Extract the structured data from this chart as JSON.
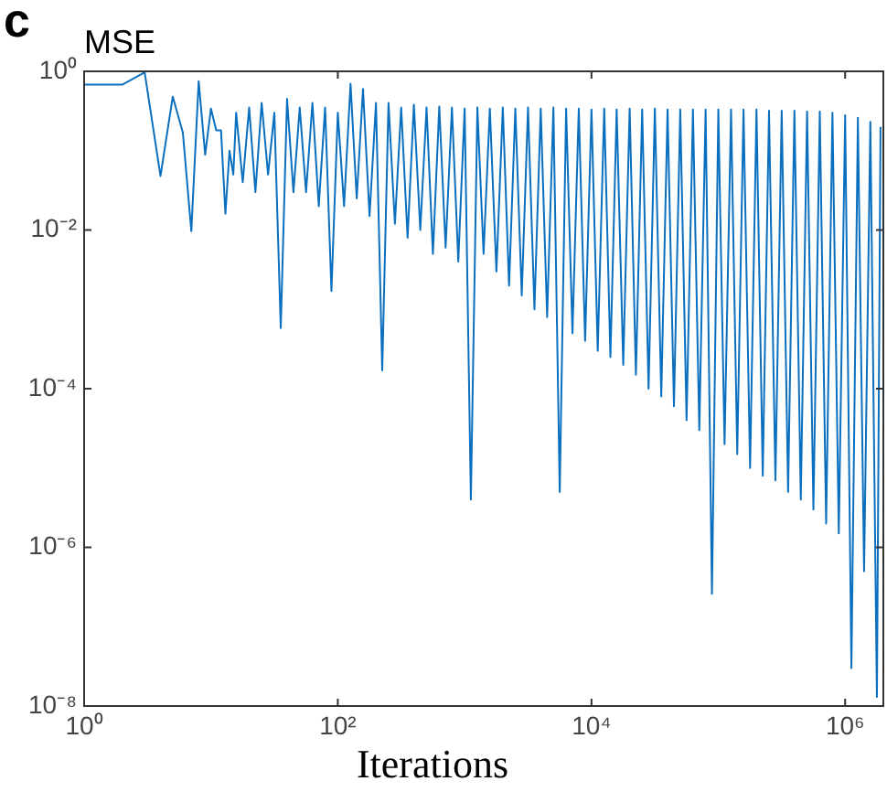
{
  "chart_data": {
    "type": "line",
    "title": "MSE",
    "xlabel": "Iterations",
    "annotations": [
      "c"
    ],
    "log": "xy",
    "grid": false,
    "legend": false,
    "marker": "none",
    "line_style": "solid",
    "color": "#0b6fbf",
    "xlim": [
      1,
      2000000
    ],
    "ylim": [
      1e-08,
      1
    ],
    "xticks": [
      {
        "value": 1,
        "label": "10⁰"
      },
      {
        "value": 100,
        "label": "10²"
      },
      {
        "value": 10000,
        "label": "10⁴"
      },
      {
        "value": 1000000,
        "label": "10⁶"
      }
    ],
    "yticks": [
      {
        "value": 1e-08,
        "label": "10⁻⁸"
      },
      {
        "value": 1e-06,
        "label": "10⁻⁶"
      },
      {
        "value": 0.0001,
        "label": "10⁻⁴"
      },
      {
        "value": 0.01,
        "label": "10⁻²"
      },
      {
        "value": 1,
        "label": "10⁰"
      }
    ],
    "x": [
      1,
      2,
      3,
      4,
      5,
      6,
      7,
      8,
      9,
      10,
      11,
      12,
      13,
      14,
      15,
      15.8,
      17.8,
      20,
      22.4,
      25.1,
      28.2,
      31.6,
      35.5,
      39.8,
      44.7,
      50.1,
      56.2,
      63.1,
      70.8,
      79.4,
      89.1,
      100,
      112,
      126,
      141,
      158,
      178,
      200,
      224,
      251,
      282,
      316,
      355,
      398,
      447,
      501,
      562,
      631,
      708,
      794,
      891,
      1000,
      1120,
      1260,
      1410,
      1580,
      1780,
      2000,
      2240,
      2510,
      2820,
      3160,
      3550,
      3980,
      4470,
      5010,
      5620,
      6310,
      7080,
      7940,
      8910,
      10000,
      11200,
      12600,
      14100,
      15800,
      17800,
      20000,
      22400,
      25100,
      28200,
      31600,
      35500,
      39800,
      44700,
      50100,
      56200,
      63100,
      70800,
      79400,
      89100,
      100000,
      112000,
      126000,
      141000,
      158000,
      178000,
      200000,
      224000,
      251000,
      282000,
      316000,
      355000,
      398000,
      447000,
      501000,
      562000,
      631000,
      708000,
      794000,
      891000,
      1000000,
      1120000,
      1260000,
      1410000,
      1580000,
      1780000,
      1900000
    ],
    "values": [
      0.68,
      0.68,
      0.97,
      0.048,
      0.48,
      0.17,
      0.0097,
      0.75,
      0.089,
      0.34,
      0.18,
      0.18,
      0.016,
      0.1,
      0.05,
      0.3,
      0.04,
      0.35,
      0.03,
      0.4,
      0.05,
      0.3,
      0.00058,
      0.45,
      0.03,
      0.35,
      0.03,
      0.4,
      0.02,
      0.35,
      0.0017,
      0.3,
      0.02,
      0.7,
      0.025,
      0.6,
      0.015,
      0.4,
      0.00017,
      0.4,
      0.012,
      0.35,
      0.008,
      0.38,
      0.01,
      0.35,
      0.005,
      0.36,
      0.006,
      0.35,
      0.004,
      0.34,
      4e-06,
      0.35,
      0.005,
      0.34,
      0.003,
      0.35,
      0.002,
      0.34,
      0.0015,
      0.35,
      0.001,
      0.34,
      0.0008,
      0.35,
      5e-06,
      0.34,
      0.0005,
      0.34,
      0.0004,
      0.33,
      0.0003,
      0.34,
      0.00025,
      0.33,
      0.0002,
      0.34,
      0.00015,
      0.33,
      0.0001,
      0.34,
      8e-05,
      0.33,
      6e-05,
      0.33,
      4e-05,
      0.33,
      3e-05,
      0.33,
      2.6e-07,
      0.33,
      2e-05,
      0.33,
      1.5e-05,
      0.33,
      1e-05,
      0.33,
      8e-06,
      0.32,
      7e-06,
      0.32,
      5e-06,
      0.32,
      4e-06,
      0.31,
      3e-06,
      0.31,
      2e-06,
      0.3,
      1.5e-06,
      0.28,
      3e-08,
      0.26,
      5e-07,
      0.23,
      1.3e-08,
      0.2
    ]
  }
}
